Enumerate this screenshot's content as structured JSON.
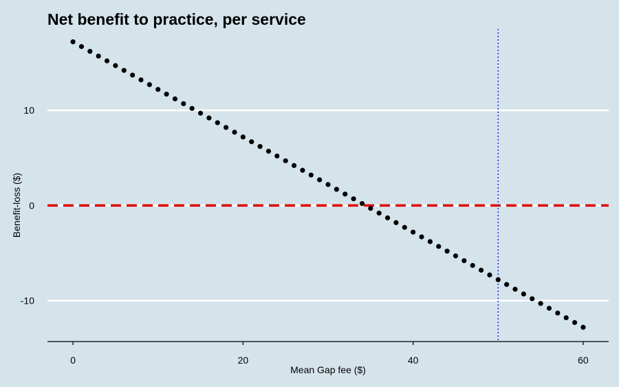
{
  "chart_data": {
    "type": "scatter",
    "title": "Net benefit to practice, per service",
    "xlabel": "Mean Gap fee ($)",
    "ylabel": "Benefit-loss ($)",
    "x_ticks": [
      0,
      20,
      40,
      60
    ],
    "y_ticks": [
      -10,
      0,
      10
    ],
    "xlim": [
      -3,
      63
    ],
    "ylim": [
      -14.3,
      18.7
    ],
    "grid": "horizontal",
    "series": [
      {
        "start_x": 0,
        "step_x": 1,
        "start_y": 17.2,
        "slope": -0.5,
        "count": 61,
        "color": "#000000"
      }
    ],
    "reference_lines": [
      {
        "orientation": "horizontal",
        "value": 0,
        "style": "dashed",
        "color": "#e00000"
      },
      {
        "orientation": "vertical",
        "value": 50,
        "style": "dotted",
        "color": "#2222ee"
      }
    ]
  }
}
